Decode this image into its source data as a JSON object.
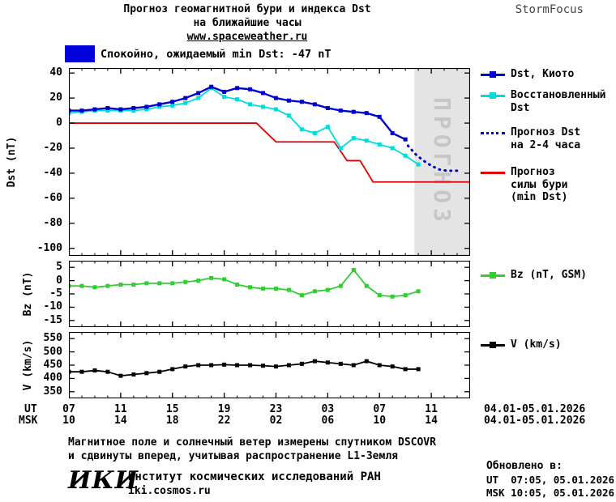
{
  "header": {
    "title_line1": "Прогноз геомагнитной бури и индекса Dst",
    "title_line2": "на ближайшие часы",
    "url": "www.spaceweather.ru",
    "brand": "StormFocus"
  },
  "status": {
    "label": "Спокойно, ожидаемый min Dst: -47 nT",
    "badge_color": "#0000dd"
  },
  "legend": {
    "kyoto": "Dst, Киото",
    "restored": "Восстановленный\nDst",
    "forecast": "Прогноз Dst\nна 2-4 часа",
    "storm": "Прогноз\nсилы бури\n(min Dst)",
    "bz": "Bz (nT, GSM)",
    "v": "V (km/s)"
  },
  "axis": {
    "ut_label": "UT",
    "msk_label": "MSK",
    "ut_date": "04.01-05.01.2026",
    "msk_date": "04.01-05.01.2026"
  },
  "footer": {
    "note_line1": "Магнитное поле и солнечный ветер измерены спутником DSCOVR",
    "note_line2": "и сдвинуты вперед, учитывая распространение L1-Земля",
    "logo": "ИКИ",
    "institute": "Институт космических исследований РАН",
    "site": "iki.cosmos.ru",
    "updated_label": "Обновлено в:",
    "updated_ut": "UT  07:05, 05.01.2026",
    "updated_msk": "MSK 10:05, 05.01.2026"
  },
  "chart_data": {
    "type": "line",
    "title": "Прогноз геомагнитной бури и индекса Dst на ближайшие часы",
    "xlim": [
      7,
      38
    ],
    "xtick_hours": [
      7,
      11,
      15,
      19,
      23,
      27,
      31,
      35
    ],
    "xtick_labels_ut": [
      "07",
      "11",
      "15",
      "19",
      "23",
      "03",
      "07",
      "11"
    ],
    "xtick_labels_msk": [
      "10",
      "14",
      "18",
      "22",
      "02",
      "06",
      "10",
      "14"
    ],
    "panels": [
      {
        "id": "dst",
        "ylabel": "Dst (nT)",
        "ylim": [
          -106,
          44
        ],
        "yticks": [
          40,
          20,
          0,
          -20,
          -40,
          -60,
          -80,
          -100
        ],
        "forecast_region": [
          33.7,
          38
        ],
        "forecast_label": "ПРОГНОЗ",
        "series": [
          {
            "name": "Прогноз силы бури (min Dst)",
            "color": "#dd0000",
            "width": 1.8,
            "x": [
              7,
              21.5,
              23,
              27.5,
              28.5,
              29.5,
              30.5,
              38
            ],
            "values": [
              0,
              0,
              -15,
              -15,
              -30,
              -30,
              -47,
              -47
            ]
          },
          {
            "name": "Восстановленный Dst",
            "color": "#00dcdc",
            "width": 1.8,
            "marker": "square",
            "x": [
              7,
              8,
              9,
              10,
              11,
              12,
              13,
              14,
              15,
              16,
              17,
              18,
              19,
              20,
              21,
              22,
              23,
              24,
              25,
              26,
              27,
              28,
              29,
              30,
              31,
              32,
              33,
              34
            ],
            "values": [
              8,
              9,
              10,
              10,
              10,
              10,
              11,
              13,
              14,
              16,
              20,
              28,
              21,
              19,
              15,
              13,
              11,
              6,
              -5,
              -8,
              -3,
              -20,
              -12,
              -14,
              -17,
              -20,
              -26,
              -33
            ]
          },
          {
            "name": "Dst, Киото",
            "color": "#0000cc",
            "width": 2.4,
            "marker": "square",
            "x": [
              7,
              8,
              9,
              10,
              11,
              12,
              13,
              14,
              15,
              16,
              17,
              18,
              19,
              20,
              21,
              22,
              23,
              24,
              25,
              26,
              27,
              28,
              29,
              30,
              31,
              32,
              33
            ],
            "values": [
              10,
              10,
              11,
              12,
              11,
              12,
              13,
              15,
              17,
              20,
              24,
              29,
              25,
              28,
              27,
              24,
              20,
              18,
              17,
              15,
              12,
              10,
              9,
              8,
              5,
              -8,
              -13
            ]
          },
          {
            "name": "Прогноз Dst на 2-4 часа",
            "color": "#0000cc",
            "style": "dotted",
            "x": [
              33.2,
              33.8,
              34.4,
              35,
              35.6,
              36.2,
              36.8,
              37.3
            ],
            "values": [
              -18,
              -25,
              -30,
              -34,
              -37,
              -38,
              -38,
              -38
            ]
          }
        ]
      },
      {
        "id": "bz",
        "ylabel": "Bz (nT)",
        "ylim": [
          -17.5,
          7.5
        ],
        "yticks": [
          5,
          0,
          -5,
          -10,
          -15
        ],
        "series": [
          {
            "name": "Bz (nT, GSM)",
            "color": "#33cc33",
            "width": 1.8,
            "marker": "square",
            "x": [
              7,
              8,
              9,
              10,
              11,
              12,
              13,
              14,
              15,
              16,
              17,
              18,
              19,
              20,
              21,
              22,
              23,
              24,
              25,
              26,
              27,
              28,
              29,
              30,
              31,
              32,
              33,
              34
            ],
            "values": [
              -2,
              -2,
              -2.5,
              -2,
              -1.5,
              -1.5,
              -1,
              -1,
              -1,
              -0.5,
              0,
              1,
              0.5,
              -1.5,
              -2.5,
              -3,
              -3,
              -3.5,
              -5.5,
              -4,
              -3.5,
              -2,
              4,
              -2,
              -5.5,
              -6,
              -5.5,
              -4
            ]
          }
        ]
      },
      {
        "id": "v",
        "ylabel": "V (km/s)",
        "ylim": [
          325,
          575
        ],
        "yticks": [
          550,
          500,
          450,
          400,
          350
        ],
        "series": [
          {
            "name": "V (km/s)",
            "color": "#000000",
            "width": 1.8,
            "marker": "square",
            "x": [
              7,
              8,
              9,
              10,
              11,
              12,
              13,
              14,
              15,
              16,
              17,
              18,
              19,
              20,
              21,
              22,
              23,
              24,
              25,
              26,
              27,
              28,
              29,
              30,
              31,
              32,
              33,
              34
            ],
            "values": [
              425,
              425,
              430,
              425,
              410,
              415,
              420,
              425,
              435,
              445,
              450,
              450,
              452,
              450,
              450,
              448,
              445,
              450,
              455,
              465,
              460,
              455,
              450,
              465,
              450,
              445,
              435,
              435
            ]
          }
        ]
      }
    ]
  }
}
